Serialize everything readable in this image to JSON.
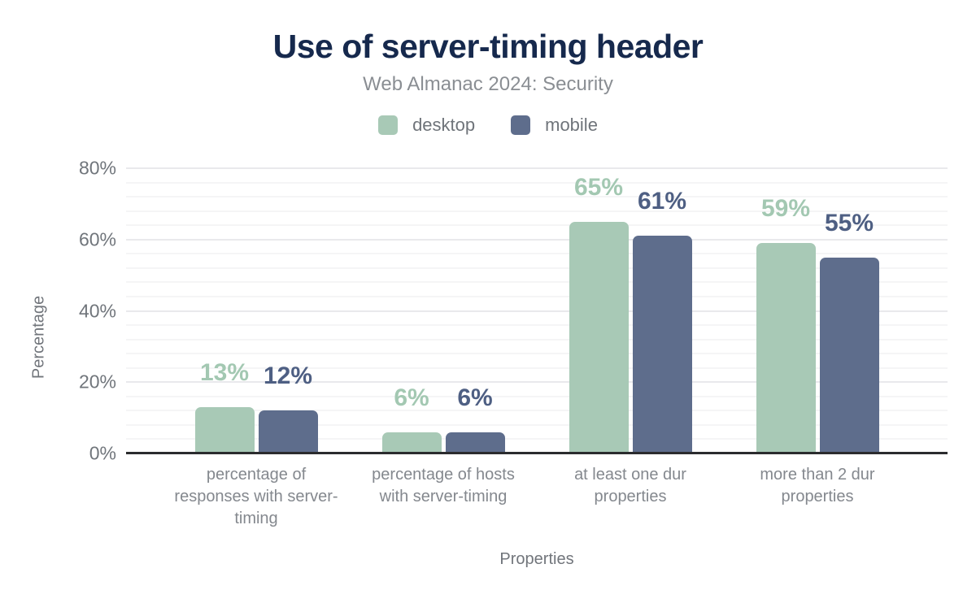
{
  "header": {
    "title": "Use of server-timing header",
    "subtitle": "Web Almanac 2024: Security"
  },
  "legend": {
    "items": [
      {
        "label": "desktop",
        "color": "#a8c9b6"
      },
      {
        "label": "mobile",
        "color": "#5e6d8c"
      }
    ]
  },
  "axes": {
    "y": {
      "title": "Percentage",
      "ticks": [
        {
          "label": "0%",
          "value": 0
        },
        {
          "label": "20%",
          "value": 20
        },
        {
          "label": "40%",
          "value": 40
        },
        {
          "label": "60%",
          "value": 60
        },
        {
          "label": "80%",
          "value": 80
        }
      ]
    },
    "x": {
      "title": "Properties"
    }
  },
  "chart_data": {
    "type": "bar",
    "title": "Use of server-timing header",
    "subtitle": "Web Almanac 2024: Security",
    "categories": [
      "percentage of responses with server-timing",
      "percentage of hosts with server-timing",
      "at least one dur properties",
      "more than 2 dur properties"
    ],
    "series": [
      {
        "name": "desktop",
        "color": "#a8c9b6",
        "label_color": "#a3c8b2",
        "values": [
          13,
          6,
          65,
          59
        ]
      },
      {
        "name": "mobile",
        "color": "#5e6d8c",
        "label_color": "#4e5f83",
        "values": [
          12,
          6,
          61,
          55
        ]
      }
    ],
    "value_suffix": "%",
    "xlabel": "Properties",
    "ylabel": "Percentage",
    "ylim": [
      0,
      80
    ],
    "y_major_step": 20,
    "y_minor_step": 4,
    "grid": "horizontal",
    "legend_position": "top"
  }
}
